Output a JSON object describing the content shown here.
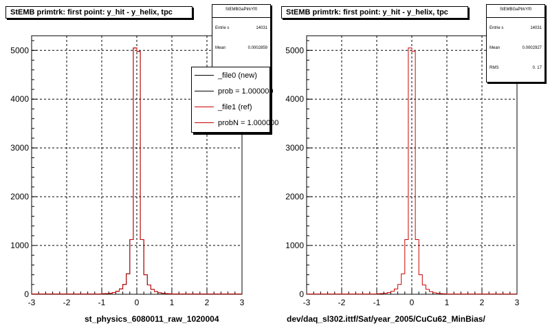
{
  "chart_data": [
    {
      "type": "histogram",
      "title": "StEMB primtrk: first point: y_hit - y_helix, tpc",
      "xlabel": "st_physics_6080011_raw_1020004",
      "ylabel": "",
      "xlim": [
        -3,
        3
      ],
      "ylim": [
        0,
        5300
      ],
      "xticks": [
        "-3",
        "-2",
        "-1",
        "0",
        "1",
        "2",
        "3"
      ],
      "yticks": [
        "0",
        "1000",
        "2000",
        "3000",
        "4000",
        "5000"
      ],
      "grid": true,
      "bin_edges_start": -3.0,
      "bin_width": 0.1,
      "series": [
        {
          "name": "_file0 (new)",
          "color": "#000000",
          "values": [
            5,
            5,
            5,
            5,
            5,
            5,
            5,
            5,
            5,
            5,
            5,
            5,
            5,
            5,
            5,
            5,
            5,
            5,
            5,
            5,
            10,
            15,
            20,
            35,
            60,
            110,
            200,
            420,
            1120,
            5050,
            4980,
            1120,
            400,
            190,
            100,
            55,
            30,
            20,
            12,
            8,
            5,
            5,
            5,
            5,
            5,
            5,
            5,
            5,
            5,
            5,
            5,
            5,
            5,
            5,
            5,
            5,
            5,
            5,
            5,
            5
          ]
        },
        {
          "name": "_file1 (ref)",
          "color": "#cc0000",
          "values": [
            5,
            5,
            5,
            5,
            5,
            5,
            5,
            5,
            5,
            5,
            5,
            5,
            5,
            5,
            5,
            5,
            5,
            5,
            5,
            5,
            10,
            15,
            20,
            35,
            60,
            110,
            200,
            420,
            1120,
            5050,
            4980,
            1120,
            400,
            190,
            100,
            55,
            30,
            20,
            12,
            8,
            5,
            5,
            5,
            5,
            5,
            5,
            5,
            5,
            5,
            5,
            5,
            5,
            5,
            5,
            5,
            5,
            5,
            5,
            5,
            5
          ]
        }
      ],
      "stats": {
        "title": "StEMBGaPtrkYf0",
        "entries_label": "Entrie s",
        "entries": "14031",
        "mean_label": "Mean",
        "mean": "0.0002859"
      },
      "legend": {
        "placement": "top-right",
        "entries": [
          {
            "label": "_file0 (new)",
            "color": "#000000"
          },
          {
            "label": "prob = 1.000000",
            "color": "#000000"
          },
          {
            "label": "_file1 (ref)",
            "color": "#cc0000"
          },
          {
            "label": "probN = 1.000000",
            "color": "#cc0000"
          }
        ]
      }
    },
    {
      "type": "histogram",
      "title": "StEMB primtrk: first point: y_hit - y_helix, tpc",
      "xlabel": "dev/daq_sl302.ittf/Sat/year_2005/CuCu62_MinBias/",
      "ylabel": "",
      "xlim": [
        -3,
        3
      ],
      "ylim": [
        0,
        5300
      ],
      "xticks": [
        "-3",
        "-2",
        "-1",
        "0",
        "1",
        "2",
        "3"
      ],
      "yticks": [
        "0",
        "1000",
        "2000",
        "3000",
        "4000",
        "5000"
      ],
      "grid": true,
      "bin_edges_start": -3.0,
      "bin_width": 0.1,
      "series": [
        {
          "color": "#cc0000",
          "values": [
            5,
            5,
            5,
            5,
            5,
            5,
            5,
            5,
            5,
            5,
            5,
            5,
            5,
            5,
            5,
            5,
            5,
            5,
            5,
            5,
            10,
            15,
            20,
            35,
            60,
            110,
            200,
            420,
            1120,
            5050,
            4980,
            1120,
            400,
            190,
            100,
            55,
            30,
            20,
            12,
            8,
            5,
            5,
            5,
            5,
            5,
            5,
            5,
            5,
            5,
            5,
            5,
            5,
            5,
            5,
            5,
            5,
            5,
            5,
            5,
            5
          ]
        }
      ],
      "stats": {
        "title": "StEMBGaPtrkYf0",
        "entries_label": "Entrie s",
        "entries": "14031",
        "mean_label": "Mean",
        "mean": "0.0002927",
        "rms_label": "RMS",
        "rms": "0. 17"
      }
    }
  ]
}
